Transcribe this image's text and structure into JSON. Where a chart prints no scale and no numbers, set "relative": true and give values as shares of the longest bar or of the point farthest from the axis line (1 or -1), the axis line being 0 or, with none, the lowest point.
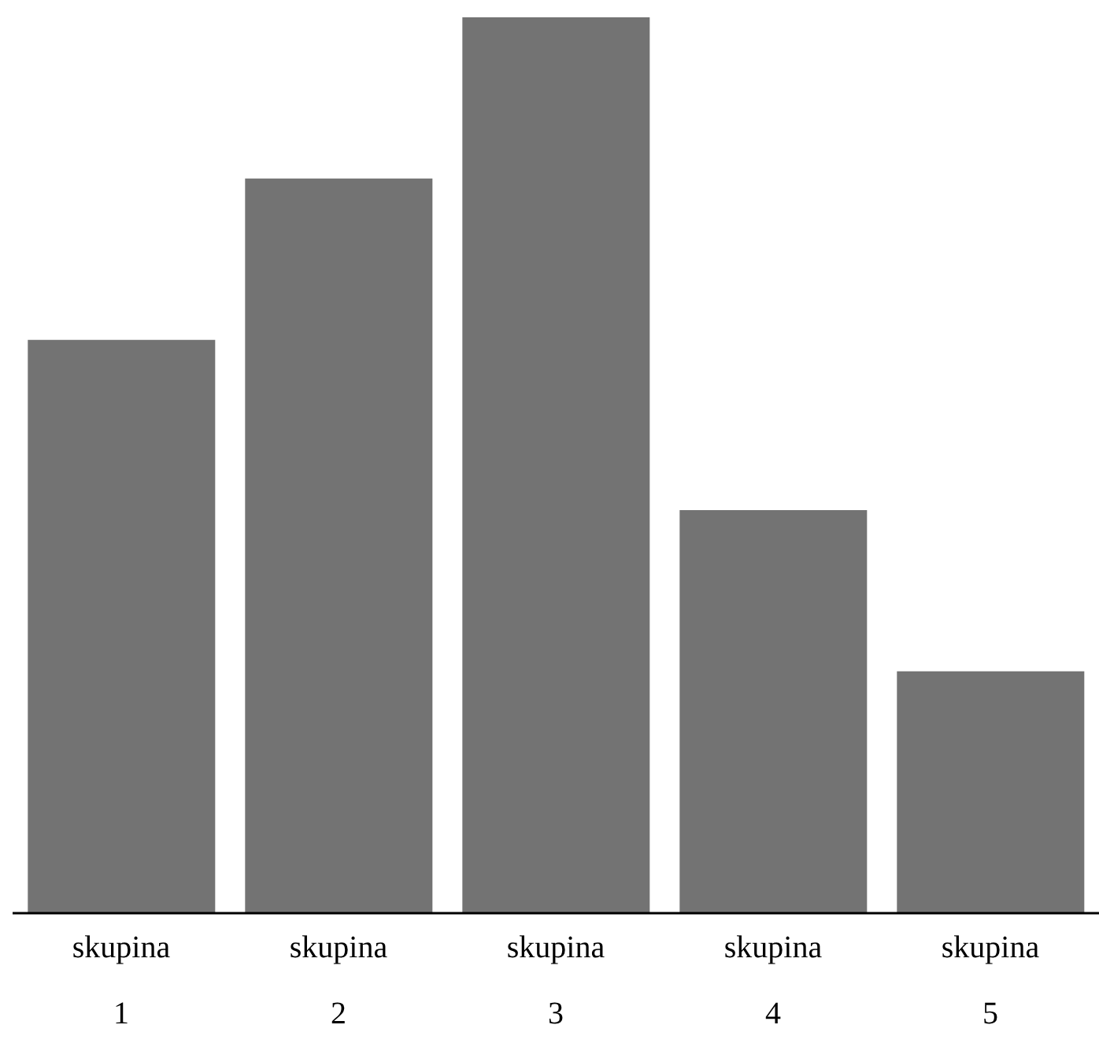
{
  "chart_data": {
    "type": "bar",
    "relative": true,
    "categories": [
      "skupina 1",
      "skupina 2",
      "skupina 3",
      "skupina 4",
      "skupina 5"
    ],
    "values": [
      0.64,
      0.82,
      1,
      0.45,
      0.27
    ],
    "color": "#737373",
    "grid": false,
    "legend": false
  }
}
